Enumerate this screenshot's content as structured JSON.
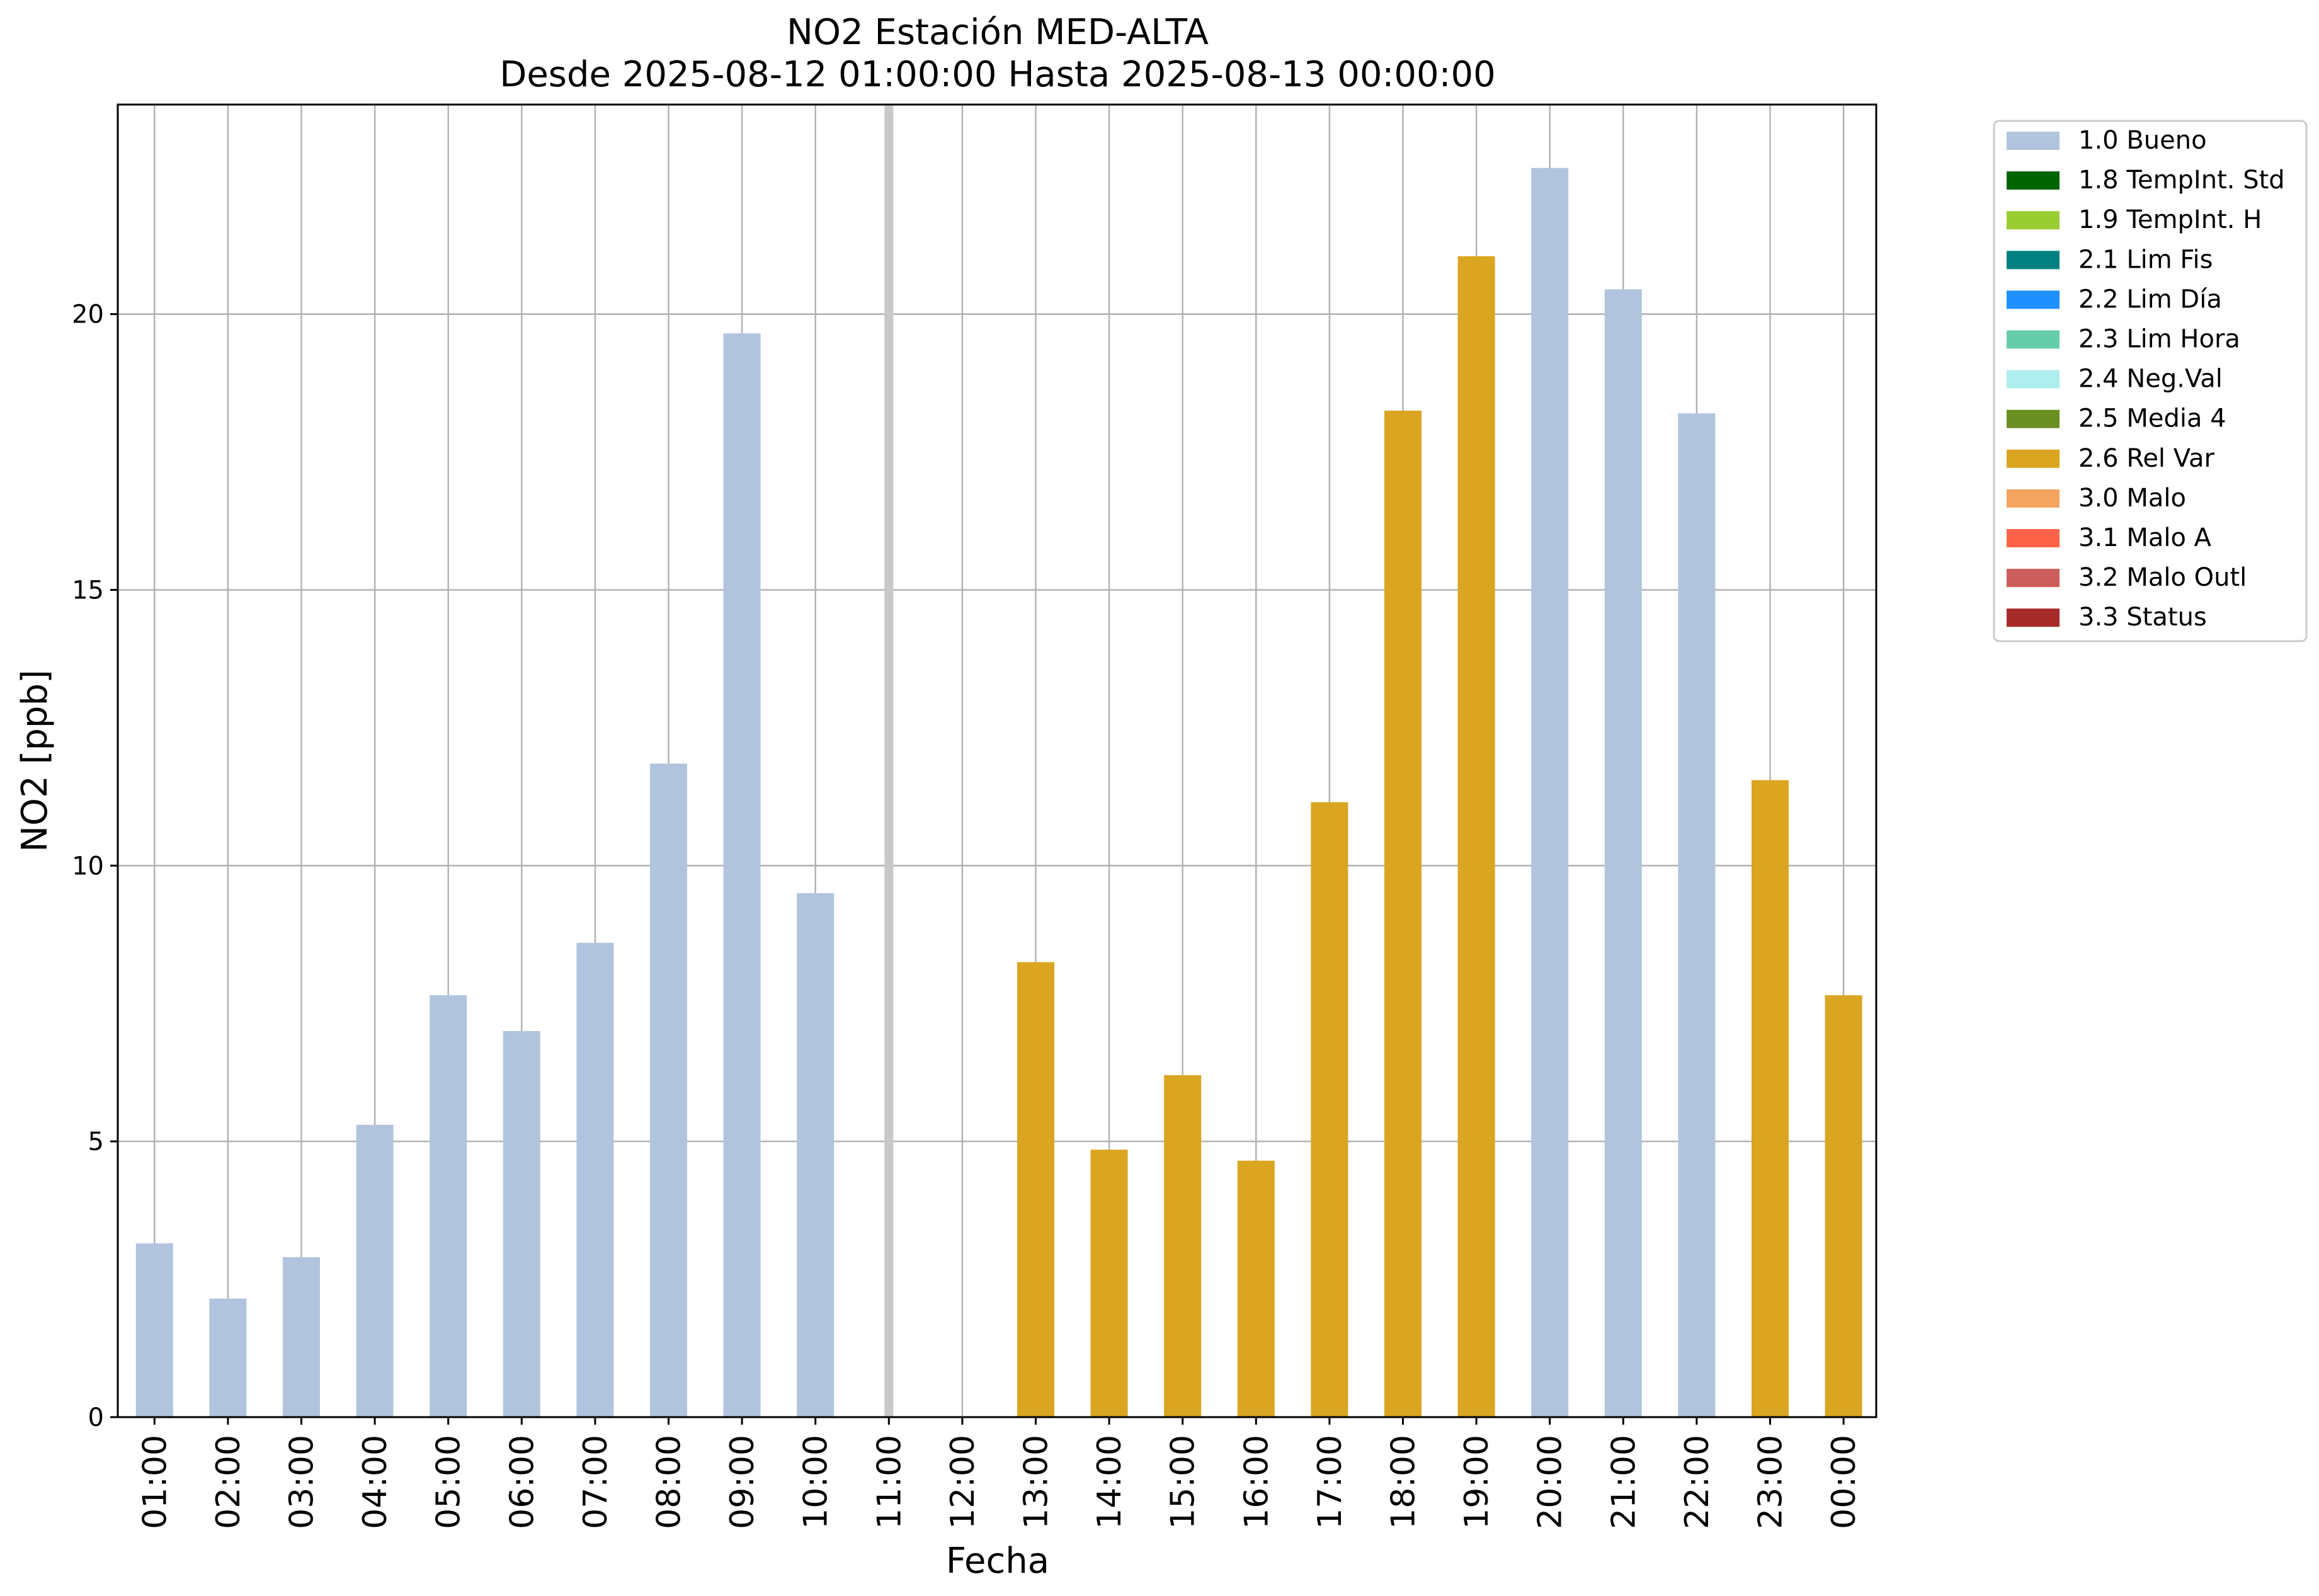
{
  "chart_data": {
    "type": "bar",
    "title": "NO2 Estación MED-ALTA",
    "subtitle": "Desde 2025-08-12 01:00:00 Hasta 2025-08-13 00:00:00",
    "xlabel": "Fecha",
    "ylabel": "NO2 [ppb]",
    "ylim": [
      0,
      23.8
    ],
    "yticks": [
      0,
      5,
      10,
      15,
      20
    ],
    "grid": true,
    "legend_position": "outside-top-right",
    "categories": [
      "01:00",
      "02:00",
      "03:00",
      "04:00",
      "05:00",
      "06:00",
      "07:00",
      "08:00",
      "09:00",
      "10:00",
      "11:00",
      "12:00",
      "13:00",
      "14:00",
      "15:00",
      "16:00",
      "17:00",
      "18:00",
      "19:00",
      "20:00",
      "21:00",
      "22:00",
      "23:00",
      "00:00"
    ],
    "values": [
      3.15,
      2.15,
      2.9,
      5.3,
      7.65,
      7.0,
      8.6,
      11.85,
      19.65,
      9.5,
      null,
      null,
      8.25,
      4.85,
      6.2,
      4.65,
      11.15,
      18.25,
      21.05,
      22.65,
      20.45,
      18.2,
      11.55,
      7.65
    ],
    "flags": [
      "1.0",
      "1.0",
      "1.0",
      "1.0",
      "1.0",
      "1.0",
      "1.0",
      "1.0",
      "1.0",
      "1.0",
      null,
      null,
      "2.6",
      "2.6",
      "2.6",
      "2.6",
      "2.6",
      "2.6",
      "2.6",
      "1.0",
      "1.0",
      "1.0",
      "2.6",
      "2.6"
    ],
    "highlight_category": "11:00",
    "legend": [
      {
        "code": "1.0",
        "label": "1.0 Bueno",
        "color": "#b0c4de"
      },
      {
        "code": "1.8",
        "label": "1.8 TempInt. Std",
        "color": "#006400"
      },
      {
        "code": "1.9",
        "label": "1.9 TempInt. H",
        "color": "#9acd32"
      },
      {
        "code": "2.1",
        "label": "2.1 Lim Fis",
        "color": "#008080"
      },
      {
        "code": "2.2",
        "label": "2.2 Lim Día",
        "color": "#1e90ff"
      },
      {
        "code": "2.3",
        "label": "2.3 Lim Hora",
        "color": "#66cdaa"
      },
      {
        "code": "2.4",
        "label": "2.4 Neg.Val",
        "color": "#afeeee"
      },
      {
        "code": "2.5",
        "label": "2.5 Media 4",
        "color": "#6b8e23"
      },
      {
        "code": "2.6",
        "label": "2.6 Rel Var",
        "color": "#daa520"
      },
      {
        "code": "3.0",
        "label": "3.0 Malo",
        "color": "#f4a460"
      },
      {
        "code": "3.1",
        "label": "3.1 Malo A",
        "color": "#ff6347"
      },
      {
        "code": "3.2",
        "label": "3.2 Malo Outl",
        "color": "#cd5c5c"
      },
      {
        "code": "3.3",
        "label": "3.3 Status",
        "color": "#a52a2a"
      }
    ]
  }
}
